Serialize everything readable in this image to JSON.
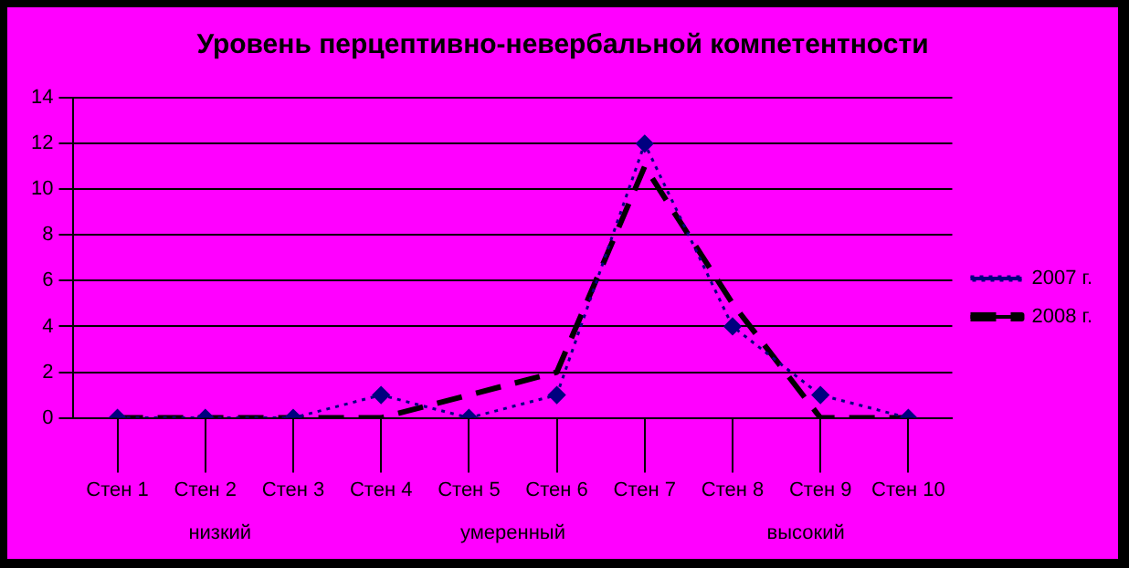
{
  "chart_data": {
    "type": "line",
    "title": "Уровень перцептивно-невербальной компетентности",
    "categories": [
      "Стен 1",
      "Стен 2",
      "Стен 3",
      "Стен 4",
      "Стен 5",
      "Стен 6",
      "Стен 7",
      "Стен 8",
      "Стен 9",
      "Стен 10"
    ],
    "series": [
      {
        "name": "2007 г.",
        "color": "#000080",
        "values": [
          0,
          0,
          0,
          1,
          0,
          1,
          12,
          4,
          1,
          0
        ],
        "marker": "diamond",
        "line_style": "dotted"
      },
      {
        "name": "2008 г.",
        "color": "#000000",
        "values": [
          0,
          0,
          0,
          0,
          1,
          2,
          11,
          5,
          0,
          0
        ],
        "marker": "none",
        "line_style": "dashed"
      }
    ],
    "ylim": [
      0,
      14
    ],
    "yticks": [
      0,
      2,
      4,
      6,
      8,
      10,
      12,
      14
    ],
    "grid": "y",
    "legend": "right",
    "annotations": [
      "низкий",
      "умеренный",
      "высокий"
    ]
  }
}
